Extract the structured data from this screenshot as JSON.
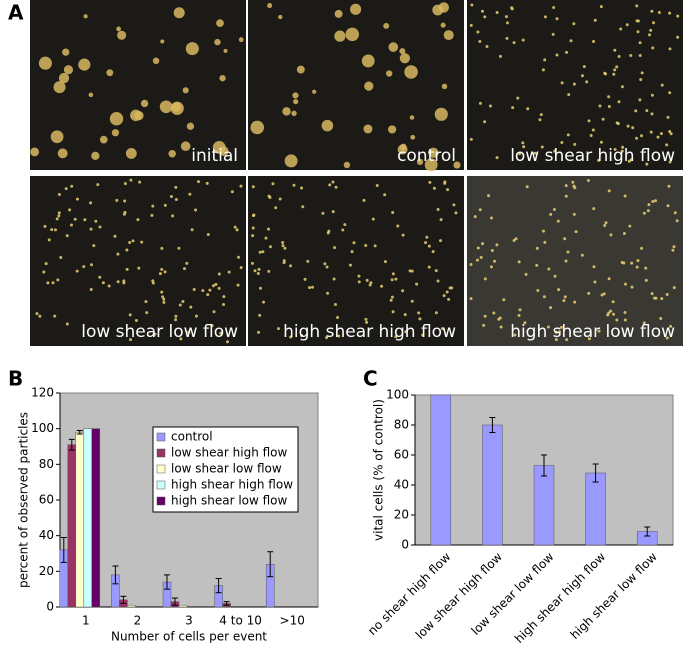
{
  "panel_a": {
    "label": "A",
    "captions": [
      "initial",
      "control",
      "low shear high flow",
      "low shear low flow",
      "high shear high flow",
      "high shear low flow"
    ]
  },
  "chart_data": [
    {
      "type": "grouped-bar",
      "panel_label": "B",
      "x_label": "Number of cells per event",
      "y_label": "percent of observed particles",
      "categories": [
        "1",
        "2",
        "3",
        "4 to 10",
        ">10"
      ],
      "series": [
        {
          "name": "control",
          "color": "#9999ff",
          "values": [
            32,
            18,
            14,
            12,
            24
          ],
          "errors": [
            7,
            5,
            4,
            4,
            7
          ]
        },
        {
          "name": "low shear high flow",
          "color": "#993366",
          "values": [
            91,
            4,
            3,
            2,
            null
          ],
          "errors": [
            3,
            2,
            2,
            1,
            null
          ]
        },
        {
          "name": "low shear low flow",
          "color": "#ffffcc",
          "values": [
            98,
            1,
            1,
            null,
            null
          ],
          "errors": [
            1,
            null,
            null,
            null,
            null
          ]
        },
        {
          "name": "high shear high flow",
          "color": "#ccffff",
          "values": [
            100,
            null,
            null,
            null,
            null
          ],
          "errors": [
            null,
            null,
            null,
            null,
            null
          ]
        },
        {
          "name": "high shear low flow",
          "color": "#660066",
          "values": [
            100,
            null,
            null,
            null,
            null
          ],
          "errors": [
            null,
            null,
            null,
            null,
            null
          ]
        }
      ],
      "ylim": [
        0,
        120
      ],
      "yticks": [
        0,
        20,
        40,
        60,
        80,
        100,
        120
      ],
      "grid": false,
      "legend": "upper right",
      "background": "#c0c0c0"
    },
    {
      "type": "bar",
      "panel_label": "C",
      "y_label": "vital cells (% of control)",
      "categories": [
        "no shear high flow",
        "low shear high flow",
        "low shear low flow",
        "high shear high flow",
        "high shear low flow"
      ],
      "values": [
        100,
        80,
        53,
        48,
        9
      ],
      "errors": [
        null,
        5,
        7,
        6,
        3
      ],
      "color": "#9999ff",
      "ylim": [
        0,
        100
      ],
      "yticks": [
        0,
        20,
        40,
        60,
        80,
        100
      ],
      "grid": false,
      "background": "#c0c0c0"
    }
  ]
}
